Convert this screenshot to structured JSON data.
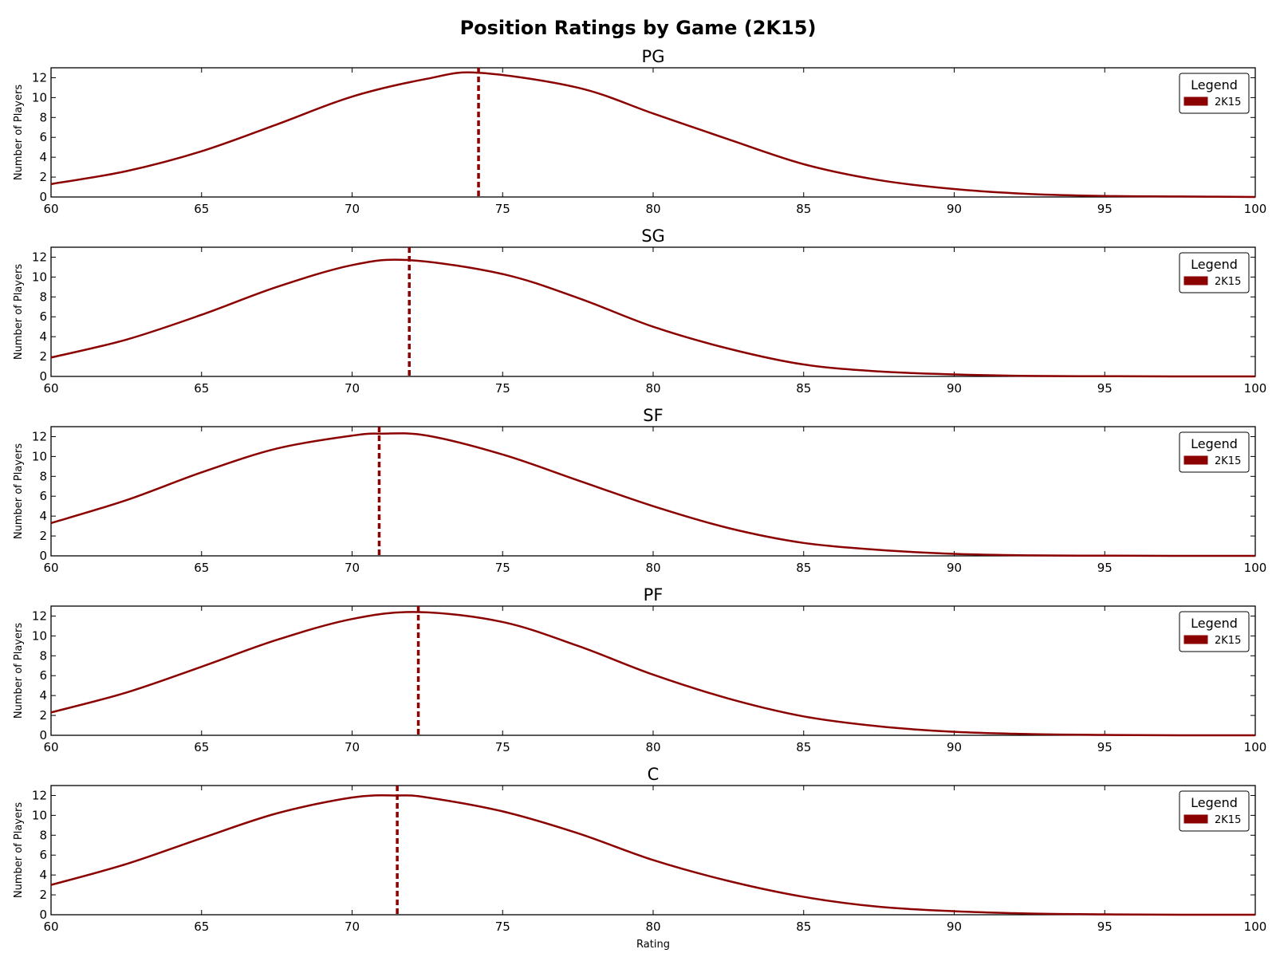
{
  "figure": {
    "title": "Position Ratings by Game (2K15)",
    "xlabel": "Rating"
  },
  "chart_data": [
    {
      "type": "line",
      "title": "PG",
      "ylabel": "Number of Players",
      "xlim": [
        60,
        100
      ],
      "ylim": [
        0,
        13
      ],
      "xticks": [
        60,
        65,
        70,
        75,
        80,
        85,
        90,
        95,
        100
      ],
      "yticks": [
        0,
        2,
        4,
        6,
        8,
        10,
        12
      ],
      "legend": {
        "title": "Legend",
        "position": "top-right",
        "entries": [
          "2K15"
        ]
      },
      "series": [
        {
          "name": "2K15",
          "color": "#8b0000",
          "x": [
            60,
            62.5,
            65,
            67.5,
            70,
            72.5,
            74.2,
            77.5,
            80,
            82.5,
            85,
            87.5,
            90,
            92.5,
            95,
            97.5,
            100
          ],
          "y": [
            1.3,
            2.6,
            4.6,
            7.3,
            10.1,
            11.9,
            12.5,
            11.0,
            8.4,
            5.8,
            3.3,
            1.7,
            0.8,
            0.3,
            0.1,
            0.05,
            0.0
          ]
        }
      ],
      "vline": {
        "x": 74.2,
        "style": "dashed"
      }
    },
    {
      "type": "line",
      "title": "SG",
      "ylabel": "Number of Players",
      "xlim": [
        60,
        100
      ],
      "ylim": [
        0,
        13
      ],
      "xticks": [
        60,
        65,
        70,
        75,
        80,
        85,
        90,
        95,
        100
      ],
      "yticks": [
        0,
        2,
        4,
        6,
        8,
        10,
        12
      ],
      "legend": {
        "title": "Legend",
        "position": "top-right",
        "entries": [
          "2K15"
        ]
      },
      "series": [
        {
          "name": "2K15",
          "color": "#8b0000",
          "x": [
            60,
            62.5,
            65,
            67.5,
            70,
            71.9,
            75,
            77.5,
            80,
            82.5,
            85,
            87.5,
            90,
            92.5,
            95,
            97.5,
            100
          ],
          "y": [
            1.9,
            3.7,
            6.2,
            9.0,
            11.2,
            11.7,
            10.3,
            7.9,
            5.0,
            2.8,
            1.2,
            0.5,
            0.2,
            0.05,
            0.02,
            0.0,
            0.0
          ]
        }
      ],
      "vline": {
        "x": 71.9,
        "style": "dashed"
      }
    },
    {
      "type": "line",
      "title": "SF",
      "ylabel": "Number of Players",
      "xlim": [
        60,
        100
      ],
      "ylim": [
        0,
        13
      ],
      "xticks": [
        60,
        65,
        70,
        75,
        80,
        85,
        90,
        95,
        100
      ],
      "yticks": [
        0,
        2,
        4,
        6,
        8,
        10,
        12
      ],
      "legend": {
        "title": "Legend",
        "position": "top-right",
        "entries": [
          "2K15"
        ]
      },
      "series": [
        {
          "name": "2K15",
          "color": "#8b0000",
          "x": [
            60,
            62.5,
            65,
            67.5,
            70,
            71,
            72.5,
            75,
            77.5,
            80,
            82.5,
            85,
            87.5,
            90,
            92.5,
            95,
            97.5,
            100
          ],
          "y": [
            3.3,
            5.6,
            8.4,
            10.8,
            12.1,
            12.3,
            12.1,
            10.2,
            7.6,
            5.0,
            2.8,
            1.3,
            0.6,
            0.2,
            0.05,
            0.02,
            0.0,
            0.0
          ]
        }
      ],
      "vline": {
        "x": 70.9,
        "style": "dashed"
      }
    },
    {
      "type": "line",
      "title": "PF",
      "ylabel": "Number of Players",
      "xlim": [
        60,
        100
      ],
      "ylim": [
        0,
        13
      ],
      "xticks": [
        60,
        65,
        70,
        75,
        80,
        85,
        90,
        95,
        100
      ],
      "yticks": [
        0,
        2,
        4,
        6,
        8,
        10,
        12
      ],
      "legend": {
        "title": "Legend",
        "position": "top-right",
        "entries": [
          "2K15"
        ]
      },
      "series": [
        {
          "name": "2K15",
          "color": "#8b0000",
          "x": [
            60,
            62.5,
            65,
            67.5,
            70,
            72.2,
            75,
            77.5,
            80,
            82.5,
            85,
            87.5,
            90,
            92.5,
            95,
            97.5,
            100
          ],
          "y": [
            2.3,
            4.3,
            6.9,
            9.6,
            11.7,
            12.4,
            11.4,
            9.0,
            6.1,
            3.7,
            1.9,
            0.9,
            0.35,
            0.12,
            0.04,
            0.0,
            0.0
          ]
        }
      ],
      "vline": {
        "x": 72.2,
        "style": "dashed"
      }
    },
    {
      "type": "line",
      "title": "C",
      "ylabel": "Number of Players",
      "xlim": [
        60,
        100
      ],
      "ylim": [
        0,
        13
      ],
      "xticks": [
        60,
        65,
        70,
        75,
        80,
        85,
        90,
        95,
        100
      ],
      "yticks": [
        0,
        2,
        4,
        6,
        8,
        10,
        12
      ],
      "legend": {
        "title": "Legend",
        "position": "top-right",
        "entries": [
          "2K15"
        ]
      },
      "series": [
        {
          "name": "2K15",
          "color": "#8b0000",
          "x": [
            60,
            62.5,
            65,
            67.5,
            70,
            71.5,
            72.5,
            75,
            77.5,
            80,
            82.5,
            85,
            87.5,
            90,
            92.5,
            95,
            97.5,
            100
          ],
          "y": [
            3.0,
            5.1,
            7.7,
            10.2,
            11.8,
            12.0,
            11.8,
            10.4,
            8.2,
            5.5,
            3.4,
            1.8,
            0.8,
            0.35,
            0.12,
            0.04,
            0.0,
            0.0
          ]
        }
      ],
      "vline": {
        "x": 71.5,
        "style": "dashed"
      }
    }
  ]
}
